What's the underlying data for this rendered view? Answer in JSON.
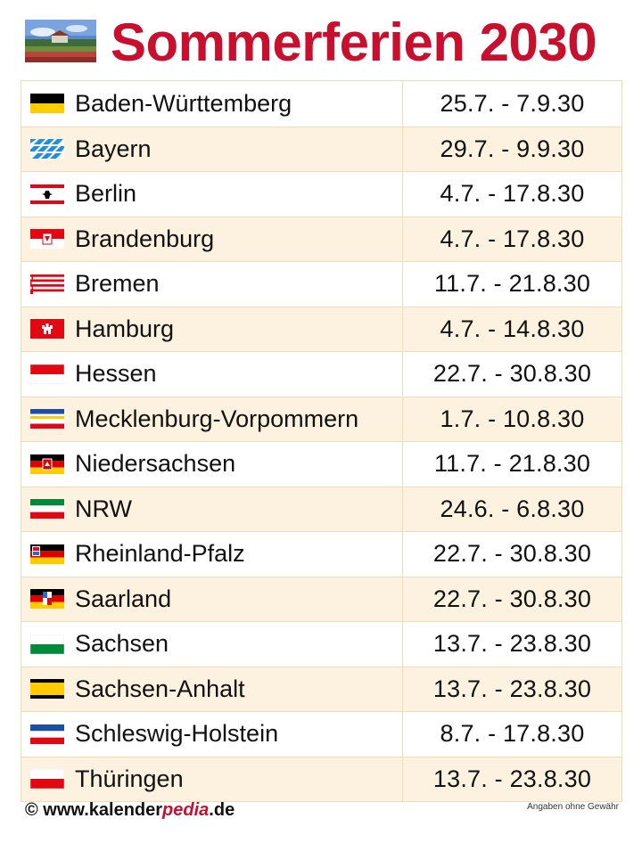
{
  "header": {
    "title": "Sommerferien 2030",
    "logo_icon": "landscape-photo-icon"
  },
  "rows": [
    {
      "state": "Baden-Württemberg",
      "dates": "25.7. - 7.9.30",
      "flag": "flag-bw-icon"
    },
    {
      "state": "Bayern",
      "dates": "29.7. - 9.9.30",
      "flag": "flag-by-icon"
    },
    {
      "state": "Berlin",
      "dates": "4.7. - 17.8.30",
      "flag": "flag-be-icon"
    },
    {
      "state": "Brandenburg",
      "dates": "4.7. - 17.8.30",
      "flag": "flag-bb-icon"
    },
    {
      "state": "Bremen",
      "dates": "11.7. - 21.8.30",
      "flag": "flag-hb-icon"
    },
    {
      "state": "Hamburg",
      "dates": "4.7. - 14.8.30",
      "flag": "flag-hh-icon"
    },
    {
      "state": "Hessen",
      "dates": "22.7. - 30.8.30",
      "flag": "flag-he-icon"
    },
    {
      "state": "Mecklenburg-Vorpommern",
      "dates": "1.7. - 10.8.30",
      "flag": "flag-mv-icon"
    },
    {
      "state": "Niedersachsen",
      "dates": "11.7. - 21.8.30",
      "flag": "flag-ni-icon"
    },
    {
      "state": "NRW",
      "dates": "24.6. - 6.8.30",
      "flag": "flag-nw-icon"
    },
    {
      "state": "Rheinland-Pfalz",
      "dates": "22.7. - 30.8.30",
      "flag": "flag-rp-icon"
    },
    {
      "state": "Saarland",
      "dates": "22.7. - 30.8.30",
      "flag": "flag-sl-icon"
    },
    {
      "state": "Sachsen",
      "dates": "13.7. - 23.8.30",
      "flag": "flag-sn-icon"
    },
    {
      "state": "Sachsen-Anhalt",
      "dates": "13.7. - 23.8.30",
      "flag": "flag-st-icon"
    },
    {
      "state": "Schleswig-Holstein",
      "dates": "8.7. - 17.8.30",
      "flag": "flag-sh-icon"
    },
    {
      "state": "Thüringen",
      "dates": "13.7. - 23.8.30",
      "flag": "flag-th-icon"
    }
  ],
  "footer": {
    "copyright": "© www.kalender",
    "brand_highlight": "pedia",
    "domain_suffix": ".de",
    "disclaimer": "Angaben ohne Gewähr"
  },
  "colors": {
    "title_red": "#c8102e",
    "row_alt": "#fdf2df",
    "border": "#ecdcb8"
  }
}
